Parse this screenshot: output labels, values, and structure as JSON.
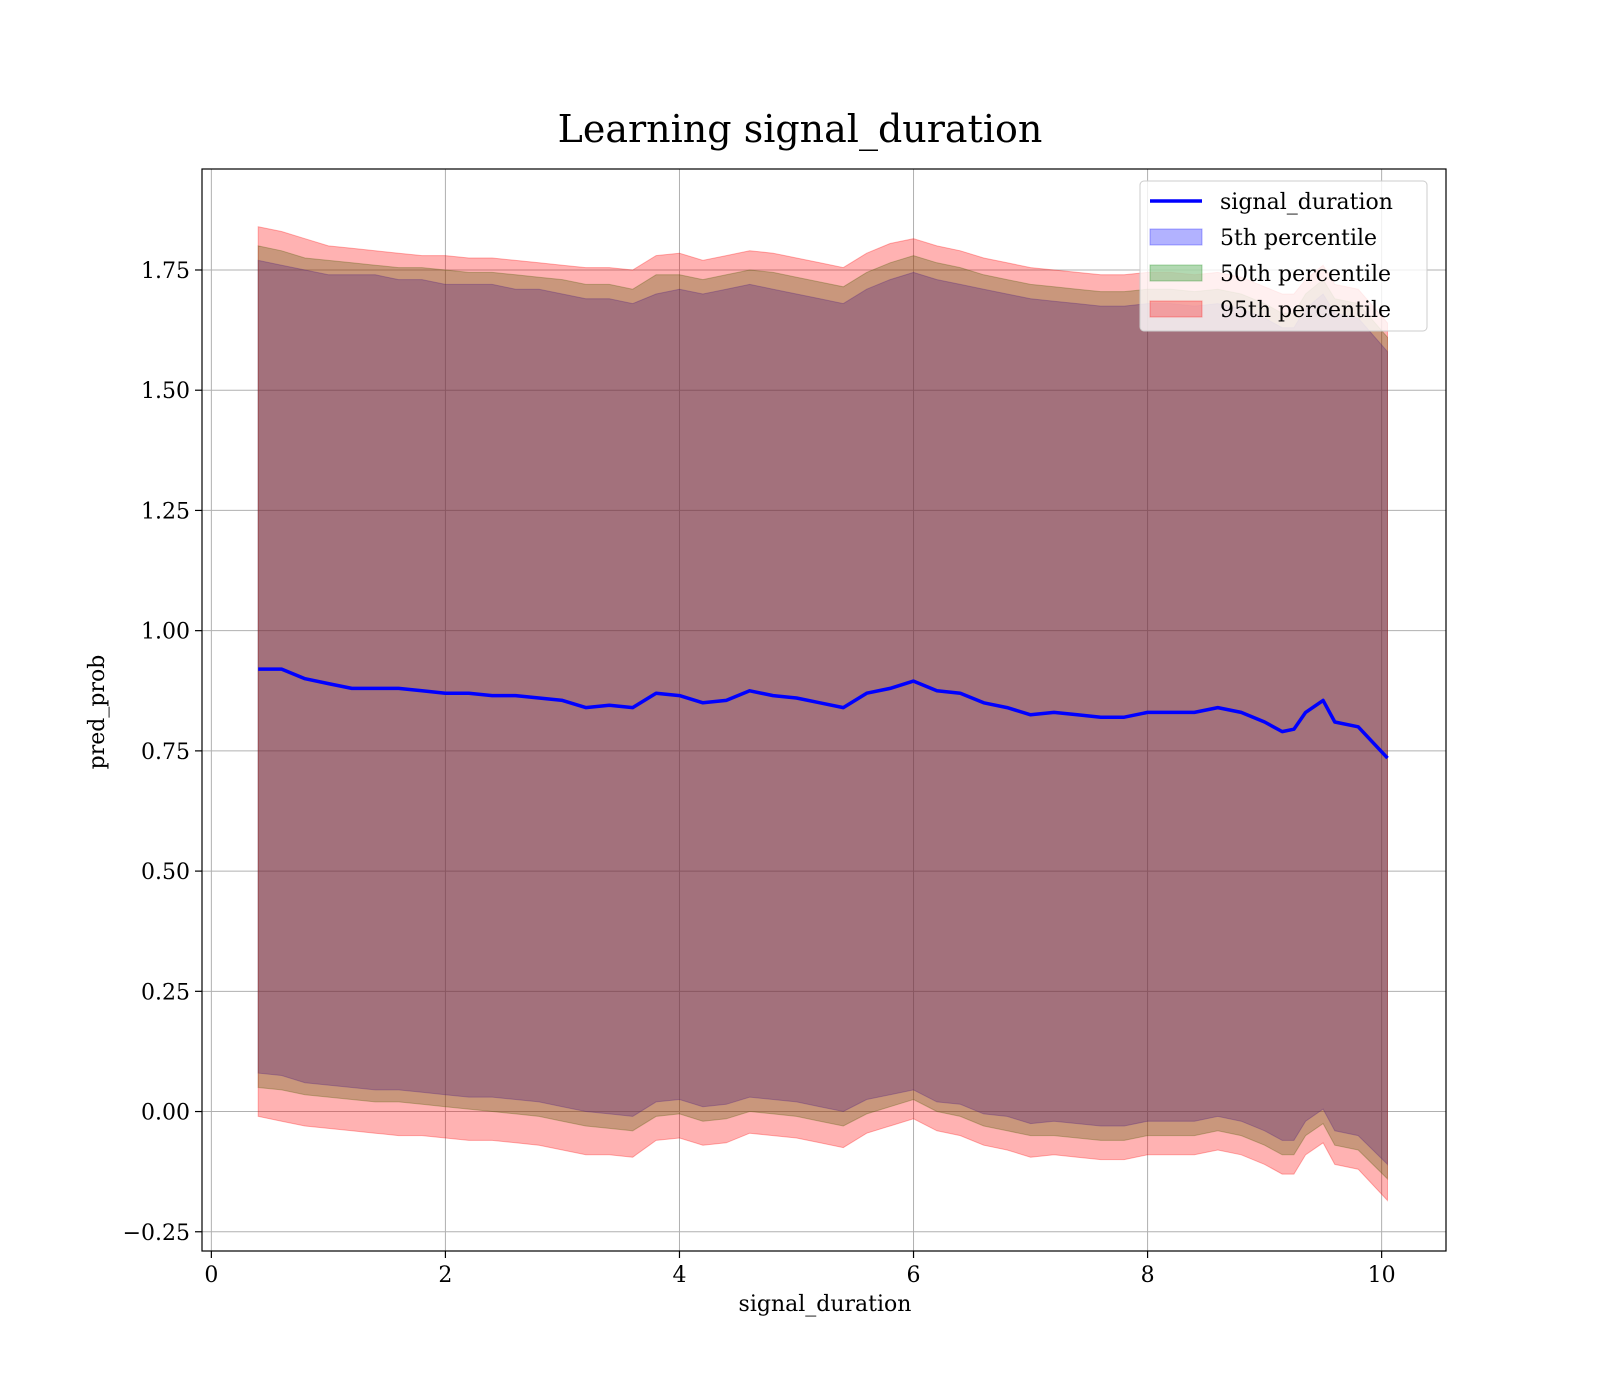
{
  "chart_data": {
    "type": "line",
    "title": "Learning signal_duration",
    "xlabel": "signal_duration",
    "ylabel": "pred_prob",
    "xlim": [
      -0.08,
      10.55
    ],
    "ylim": [
      -0.29,
      1.96
    ],
    "xticks": [
      0,
      2,
      4,
      6,
      8,
      10
    ],
    "xtick_labels": [
      "0",
      "2",
      "4",
      "6",
      "8",
      "10"
    ],
    "yticks": [
      -0.25,
      0,
      0.25,
      0.5,
      0.75,
      1.0,
      1.25,
      1.5,
      1.75
    ],
    "ytick_labels": [
      "−0.25",
      "0.00",
      "0.25",
      "0.50",
      "0.75",
      "1.00",
      "1.25",
      "1.50",
      "1.75"
    ],
    "grid": true,
    "legend_position": "top-right",
    "x": [
      0.4,
      0.6,
      0.8,
      1.0,
      1.2,
      1.4,
      1.6,
      1.8,
      2.0,
      2.2,
      2.4,
      2.6,
      2.8,
      3.0,
      3.2,
      3.4,
      3.6,
      3.8,
      4.0,
      4.2,
      4.4,
      4.6,
      4.8,
      5.0,
      5.2,
      5.4,
      5.6,
      5.8,
      6.0,
      6.2,
      6.4,
      6.6,
      6.8,
      7.0,
      7.2,
      7.4,
      7.6,
      7.8,
      8.0,
      8.2,
      8.4,
      8.6,
      8.8,
      9.0,
      9.15,
      9.25,
      9.35,
      9.5,
      9.6,
      9.8,
      10.05
    ],
    "series": [
      {
        "name": "signal_duration",
        "kind": "line",
        "color": "#0000ff",
        "values": [
          0.92,
          0.92,
          0.9,
          0.89,
          0.88,
          0.88,
          0.88,
          0.875,
          0.87,
          0.87,
          0.865,
          0.865,
          0.86,
          0.855,
          0.84,
          0.845,
          0.84,
          0.87,
          0.865,
          0.85,
          0.855,
          0.875,
          0.865,
          0.86,
          0.85,
          0.84,
          0.87,
          0.88,
          0.895,
          0.875,
          0.87,
          0.85,
          0.84,
          0.825,
          0.83,
          0.825,
          0.82,
          0.82,
          0.83,
          0.83,
          0.83,
          0.84,
          0.83,
          0.81,
          0.79,
          0.795,
          0.83,
          0.855,
          0.81,
          0.8,
          0.735
        ]
      },
      {
        "name": "5th percentile",
        "kind": "band",
        "color": "#0000ff",
        "upper": [
          1.77,
          1.76,
          1.75,
          1.74,
          1.74,
          1.74,
          1.73,
          1.73,
          1.72,
          1.72,
          1.72,
          1.71,
          1.71,
          1.7,
          1.69,
          1.69,
          1.68,
          1.7,
          1.71,
          1.7,
          1.71,
          1.72,
          1.71,
          1.7,
          1.69,
          1.68,
          1.71,
          1.73,
          1.745,
          1.73,
          1.72,
          1.71,
          1.7,
          1.69,
          1.685,
          1.68,
          1.675,
          1.675,
          1.68,
          1.68,
          1.675,
          1.68,
          1.67,
          1.65,
          1.63,
          1.63,
          1.67,
          1.7,
          1.66,
          1.65,
          1.58
        ],
        "lower": [
          0.08,
          0.075,
          0.06,
          0.055,
          0.05,
          0.045,
          0.045,
          0.04,
          0.035,
          0.03,
          0.03,
          0.025,
          0.02,
          0.01,
          0.0,
          -0.005,
          -0.01,
          0.02,
          0.025,
          0.01,
          0.015,
          0.03,
          0.025,
          0.02,
          0.01,
          0.0,
          0.025,
          0.035,
          0.045,
          0.02,
          0.015,
          -0.005,
          -0.01,
          -0.025,
          -0.02,
          -0.025,
          -0.03,
          -0.03,
          -0.02,
          -0.02,
          -0.02,
          -0.01,
          -0.02,
          -0.04,
          -0.06,
          -0.06,
          -0.02,
          0.005,
          -0.04,
          -0.05,
          -0.11
        ]
      },
      {
        "name": "50th percentile",
        "kind": "band",
        "color": "#008000",
        "upper": [
          1.8,
          1.79,
          1.775,
          1.77,
          1.765,
          1.76,
          1.755,
          1.755,
          1.75,
          1.745,
          1.745,
          1.74,
          1.735,
          1.73,
          1.72,
          1.72,
          1.71,
          1.74,
          1.74,
          1.73,
          1.74,
          1.75,
          1.745,
          1.735,
          1.725,
          1.715,
          1.745,
          1.765,
          1.78,
          1.765,
          1.755,
          1.74,
          1.73,
          1.72,
          1.715,
          1.71,
          1.705,
          1.705,
          1.71,
          1.71,
          1.705,
          1.71,
          1.7,
          1.68,
          1.66,
          1.66,
          1.7,
          1.73,
          1.69,
          1.68,
          1.61
        ],
        "lower": [
          0.05,
          0.045,
          0.035,
          0.03,
          0.025,
          0.02,
          0.02,
          0.015,
          0.01,
          0.005,
          0.0,
          -0.005,
          -0.01,
          -0.02,
          -0.03,
          -0.035,
          -0.04,
          -0.01,
          -0.005,
          -0.02,
          -0.015,
          0.0,
          -0.005,
          -0.01,
          -0.02,
          -0.03,
          -0.005,
          0.01,
          0.025,
          0.0,
          -0.01,
          -0.03,
          -0.04,
          -0.05,
          -0.05,
          -0.055,
          -0.06,
          -0.06,
          -0.05,
          -0.05,
          -0.05,
          -0.04,
          -0.05,
          -0.07,
          -0.09,
          -0.09,
          -0.05,
          -0.025,
          -0.07,
          -0.08,
          -0.14
        ]
      },
      {
        "name": "95th percentile",
        "kind": "band",
        "color": "#ff0000",
        "upper": [
          1.84,
          1.83,
          1.815,
          1.8,
          1.795,
          1.79,
          1.785,
          1.78,
          1.78,
          1.775,
          1.775,
          1.77,
          1.765,
          1.76,
          1.755,
          1.755,
          1.75,
          1.78,
          1.785,
          1.77,
          1.78,
          1.79,
          1.785,
          1.775,
          1.765,
          1.755,
          1.785,
          1.805,
          1.815,
          1.8,
          1.79,
          1.775,
          1.765,
          1.755,
          1.75,
          1.745,
          1.74,
          1.74,
          1.745,
          1.745,
          1.74,
          1.745,
          1.735,
          1.715,
          1.7,
          1.7,
          1.73,
          1.76,
          1.72,
          1.71,
          1.64
        ],
        "lower": [
          -0.01,
          -0.02,
          -0.03,
          -0.035,
          -0.04,
          -0.045,
          -0.05,
          -0.05,
          -0.055,
          -0.06,
          -0.06,
          -0.065,
          -0.07,
          -0.08,
          -0.09,
          -0.09,
          -0.095,
          -0.06,
          -0.055,
          -0.07,
          -0.065,
          -0.045,
          -0.05,
          -0.055,
          -0.065,
          -0.075,
          -0.045,
          -0.03,
          -0.015,
          -0.04,
          -0.05,
          -0.07,
          -0.08,
          -0.095,
          -0.09,
          -0.095,
          -0.1,
          -0.1,
          -0.09,
          -0.09,
          -0.09,
          -0.08,
          -0.09,
          -0.11,
          -0.13,
          -0.13,
          -0.09,
          -0.065,
          -0.11,
          -0.12,
          -0.185
        ]
      }
    ]
  }
}
